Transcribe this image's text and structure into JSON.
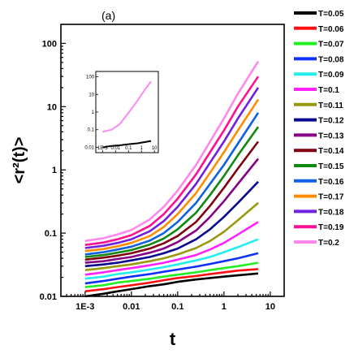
{
  "chart_data": {
    "type": "line",
    "panel_label": "(a)",
    "xlabel": "t",
    "ylabel": "<r²(t)>",
    "x_scale": "log",
    "y_scale": "log",
    "xlim": [
      0.0003,
      20
    ],
    "ylim": [
      0.01,
      200
    ],
    "x_ticks": [
      "1E-3",
      "0.01",
      "0.1",
      "1",
      "10"
    ],
    "y_ticks": [
      "0.01",
      "0.1",
      "1",
      "10",
      "100"
    ],
    "legend_position": "right",
    "x": [
      0.001,
      0.0025,
      0.005,
      0.01,
      0.025,
      0.05,
      0.1,
      0.25,
      0.5,
      1,
      2,
      5.5
    ],
    "series": [
      {
        "name": "T=0.05",
        "color": "#000000",
        "values": [
          0.01,
          0.011,
          0.012,
          0.013,
          0.0145,
          0.0155,
          0.017,
          0.0185,
          0.0195,
          0.0205,
          0.0215,
          0.023
        ]
      },
      {
        "name": "T=0.06",
        "color": "#ff1010",
        "values": [
          0.012,
          0.013,
          0.014,
          0.015,
          0.0165,
          0.018,
          0.0195,
          0.021,
          0.0225,
          0.024,
          0.0255,
          0.027
        ]
      },
      {
        "name": "T=0.07",
        "color": "#22ee22",
        "values": [
          0.014,
          0.015,
          0.0165,
          0.0175,
          0.019,
          0.0205,
          0.022,
          0.024,
          0.026,
          0.028,
          0.03,
          0.034
        ]
      },
      {
        "name": "T=0.08",
        "color": "#1030ff",
        "values": [
          0.016,
          0.0175,
          0.019,
          0.0205,
          0.0225,
          0.0245,
          0.0265,
          0.0295,
          0.0325,
          0.036,
          0.04,
          0.048
        ]
      },
      {
        "name": "T=0.09",
        "color": "#22eeee",
        "values": [
          0.019,
          0.0205,
          0.0225,
          0.024,
          0.0265,
          0.029,
          0.032,
          0.037,
          0.042,
          0.05,
          0.06,
          0.08
        ]
      },
      {
        "name": "T=0.1",
        "color": "#ff22ff",
        "values": [
          0.022,
          0.024,
          0.026,
          0.028,
          0.031,
          0.034,
          0.038,
          0.045,
          0.055,
          0.07,
          0.095,
          0.15
        ]
      },
      {
        "name": "T=0.11",
        "color": "#999911",
        "values": [
          0.026,
          0.028,
          0.03,
          0.032,
          0.036,
          0.04,
          0.046,
          0.058,
          0.075,
          0.105,
          0.16,
          0.3
        ]
      },
      {
        "name": "T=0.12",
        "color": "#0a0a90",
        "values": [
          0.03,
          0.032,
          0.034,
          0.037,
          0.042,
          0.048,
          0.057,
          0.08,
          0.115,
          0.18,
          0.3,
          0.65
        ]
      },
      {
        "name": "T=0.13",
        "color": "#880088",
        "values": [
          0.034,
          0.036,
          0.039,
          0.042,
          0.049,
          0.057,
          0.072,
          0.11,
          0.18,
          0.32,
          0.6,
          1.5
        ]
      },
      {
        "name": "T=0.14",
        "color": "#800010",
        "values": [
          0.038,
          0.041,
          0.044,
          0.048,
          0.057,
          0.069,
          0.09,
          0.15,
          0.27,
          0.52,
          1.05,
          2.8
        ]
      },
      {
        "name": "T=0.15",
        "color": "#118811",
        "values": [
          0.042,
          0.045,
          0.049,
          0.054,
          0.066,
          0.082,
          0.115,
          0.21,
          0.4,
          0.8,
          1.7,
          4.8
        ]
      },
      {
        "name": "T=0.16",
        "color": "#1060e0",
        "values": [
          0.046,
          0.05,
          0.055,
          0.061,
          0.076,
          0.1,
          0.15,
          0.3,
          0.6,
          1.2,
          2.6,
          8.0
        ]
      },
      {
        "name": "T=0.17",
        "color": "#ff8c00",
        "values": [
          0.052,
          0.056,
          0.062,
          0.07,
          0.09,
          0.125,
          0.2,
          0.43,
          0.9,
          1.9,
          4.2,
          13.0
        ]
      },
      {
        "name": "T=0.18",
        "color": "#7020e0",
        "values": [
          0.058,
          0.063,
          0.07,
          0.08,
          0.107,
          0.155,
          0.26,
          0.6,
          1.3,
          2.8,
          6.5,
          20.0
        ]
      },
      {
        "name": "T=0.19",
        "color": "#ff1090",
        "values": [
          0.065,
          0.071,
          0.08,
          0.093,
          0.13,
          0.2,
          0.35,
          0.85,
          1.9,
          4.2,
          10.0,
          30.0
        ]
      },
      {
        "name": "T=0.2",
        "color": "#ff88ee",
        "values": [
          0.075,
          0.083,
          0.095,
          0.112,
          0.165,
          0.26,
          0.47,
          1.2,
          2.8,
          6.5,
          16.0,
          52.0
        ]
      }
    ],
    "inset": {
      "x_scale": "log",
      "y_scale": "log",
      "xlim": [
        0.0003,
        20
      ],
      "ylim": [
        0.005,
        200
      ],
      "x_ticks": [
        "1E-3",
        "0.01",
        "0.1",
        "1",
        "10"
      ],
      "y_ticks": [
        "0.01",
        "0.1",
        "1",
        "10",
        "100"
      ],
      "x": [
        0.001,
        0.005,
        0.02,
        0.1,
        0.5,
        2,
        5.5
      ],
      "series": [
        {
          "color": "#000000",
          "values": [
            0.01,
            0.012,
            0.013,
            0.015,
            0.017,
            0.02,
            0.023
          ]
        },
        {
          "color": "#ff88ee",
          "values": [
            0.075,
            0.1,
            0.2,
            0.9,
            4.5,
            20.0,
            55.0
          ]
        }
      ]
    }
  }
}
